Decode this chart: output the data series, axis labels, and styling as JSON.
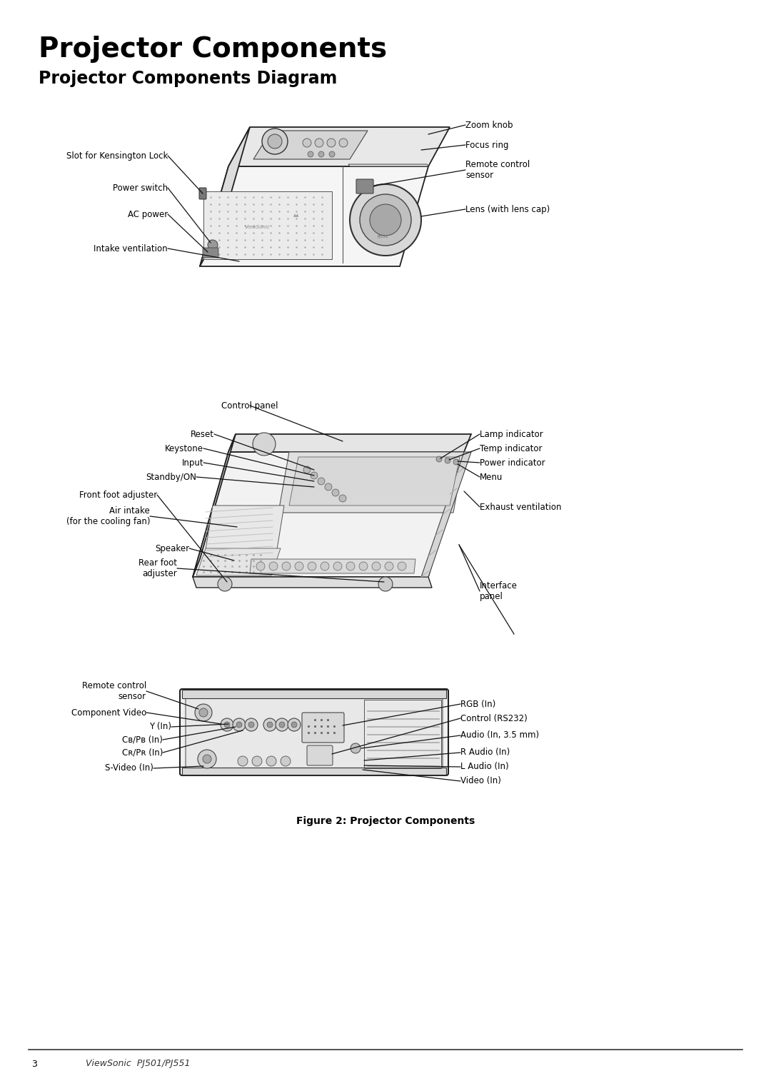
{
  "title": "Projector Components",
  "subtitle": "Projector Components Diagram",
  "figure_caption": "Figure 2: Projector Components",
  "footer_page": "3",
  "footer_text": "ViewSonic  PJ501/PJ551",
  "bg_color": "#ffffff",
  "text_color": "#000000",
  "label_fontsize": 8.5,
  "title_fontsize": 28,
  "subtitle_fontsize": 17
}
